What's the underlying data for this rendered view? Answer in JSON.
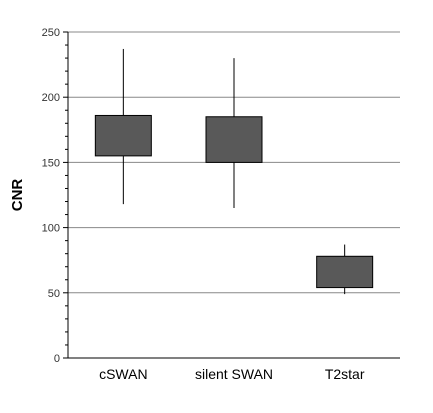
{
  "chart_data": {
    "type": "box",
    "title": "",
    "xlabel": "",
    "ylabel": "CNR",
    "ylim": [
      0,
      250
    ],
    "yticks": [
      0,
      50,
      100,
      150,
      200,
      250
    ],
    "grid": true,
    "categories": [
      "cSWAN",
      "silent SWAN",
      "T2star"
    ],
    "boxes": [
      {
        "category": "cSWAN",
        "whisker_low": 118,
        "q1": 155,
        "q3": 186,
        "whisker_high": 237
      },
      {
        "category": "silent SWAN",
        "whisker_low": 115,
        "q1": 150,
        "q3": 185,
        "whisker_high": 230
      },
      {
        "category": "T2star",
        "whisker_low": 49,
        "q1": 54,
        "q3": 78,
        "whisker_high": 87
      }
    ],
    "colors": {
      "box_fill": "#595959",
      "box_stroke": "#000000",
      "grid": "#888888"
    }
  }
}
